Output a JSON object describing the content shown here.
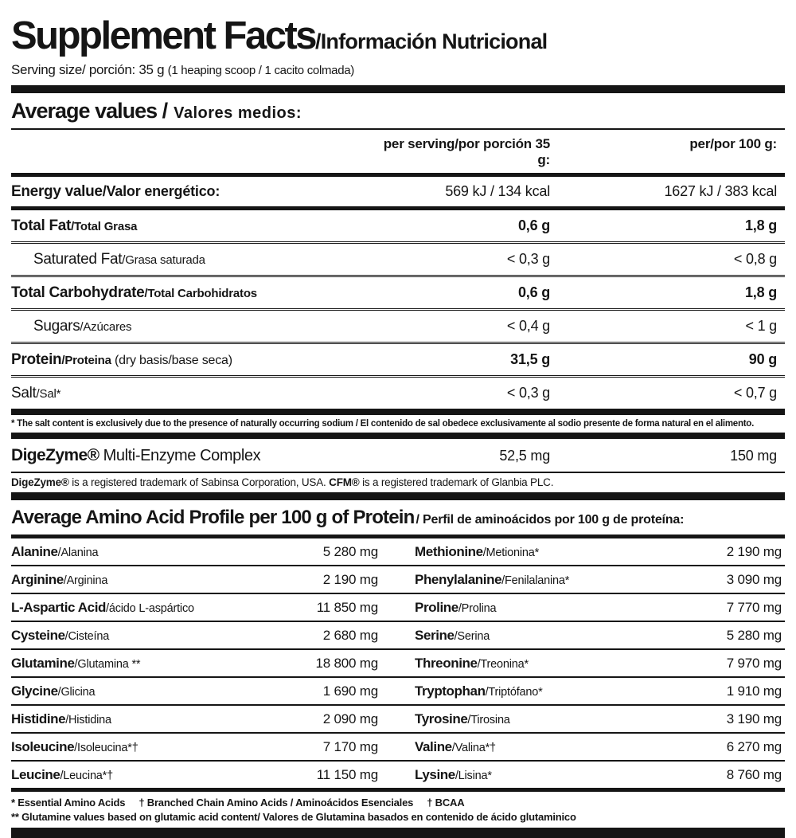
{
  "header": {
    "title_en": "Supplement Facts",
    "title_es": "/Información Nutricional",
    "serving_label": "Serving size/ porción: 35 g ",
    "serving_note": "(1 heaping scoop / 1 cacito colmada)"
  },
  "average_values": {
    "heading_en": "Average values /",
    "heading_es": "Valores medios:",
    "col_per_serving": "per serving/por porción 35 g:",
    "col_per_100g": "per/por 100 g:"
  },
  "nutrition": {
    "rows": [
      {
        "en": "Energy value",
        "es": "/Valor energético:",
        "serving": "569 kJ / 134 kcal",
        "per100": "1627 kJ / 383 kcal"
      },
      {
        "en": "Total Fat",
        "es": "/Total Grasa",
        "serving": "0,6 g",
        "per100": "1,8 g"
      },
      {
        "en": "Saturated Fat",
        "es": "/Grasa saturada",
        "serving": "< 0,3 g",
        "per100": "< 0,8 g"
      },
      {
        "en": "Total Carbohydrate",
        "es": "/Total Carbohidratos",
        "serving": "0,6 g",
        "per100": "1,8 g"
      },
      {
        "en": "Sugars",
        "es": "/Azúcares",
        "serving": "< 0,4 g",
        "per100": "< 1 g"
      },
      {
        "en": "Protein",
        "es": "/Proteina",
        "note": " (dry basis/base seca)",
        "serving": "31,5 g",
        "per100": "90 g"
      },
      {
        "en": "Salt",
        "es": "/Sal*",
        "serving": "< 0,3 g",
        "per100": "< 0,7 g"
      }
    ],
    "salt_footnote": "* The salt content is exclusively due to the presence of naturally occurring sodium / El contenido de sal obedece exclusivamente al sodio presente de forma natural en el alimento."
  },
  "enzyme": {
    "name_bold": "DigeZyme®",
    "name_rest": " Multi-Enzyme Complex",
    "serving": "52,5 mg",
    "per100": "150 mg",
    "tm_bold1": "DigeZyme®",
    "tm_text1": " is a registered trademark of Sabinsa Corporation, USA. ",
    "tm_bold2": "CFM®",
    "tm_text2": " is a registered trademark of Glanbia PLC."
  },
  "amino": {
    "heading_en": "Average Amino Acid Profile per 100 g of Protein",
    "heading_es": "/ Perfil de aminoácidos por 100 g de proteína:",
    "rows": [
      {
        "l_en": "Alanine",
        "l_es": "/Alanina",
        "l_val": "5 280 mg",
        "r_en": "Methionine",
        "r_es": "/Metionina*",
        "r_val": "2 190 mg"
      },
      {
        "l_en": "Arginine",
        "l_es": "/Arginina",
        "l_val": "2 190 mg",
        "r_en": "Phenylalanine",
        "r_es": "/Fenilalanina*",
        "r_val": "3 090 mg"
      },
      {
        "l_en": "L-Aspartic Acid",
        "l_es": "/ácido L-aspártico",
        "l_val": "11 850 mg",
        "r_en": "Proline",
        "r_es": "/Prolina",
        "r_val": "7 770 mg"
      },
      {
        "l_en": "Cysteine",
        "l_es": "/Cisteína",
        "l_val": "2 680 mg",
        "r_en": "Serine",
        "r_es": "/Serina",
        "r_val": "5 280 mg"
      },
      {
        "l_en": "Glutamine",
        "l_es": "/Glutamina **",
        "l_val": "18 800 mg",
        "r_en": "Threonine",
        "r_es": "/Treonina*",
        "r_val": "7 970 mg"
      },
      {
        "l_en": "Glycine",
        "l_es": "/Glicina",
        "l_val": "1 690 mg",
        "r_en": "Tryptophan",
        "r_es": "/Triptófano*",
        "r_val": "1 910 mg"
      },
      {
        "l_en": "Histidine",
        "l_es": "/Histidina",
        "l_val": "2 090 mg",
        "r_en": "Tyrosine",
        "r_es": "/Tirosina",
        "r_val": "3 190 mg"
      },
      {
        "l_en": "Isoleucine",
        "l_es": "/Isoleucina*†",
        "l_val": "7 170 mg",
        "r_en": "Valine",
        "r_es": "/Valina*†",
        "r_val": "6 270 mg"
      },
      {
        "l_en": "Leucine",
        "l_es": "/Leucina*†",
        "l_val": "11 150 mg",
        "r_en": "Lysine",
        "r_es": "/Lisina*",
        "r_val": "8 760 mg"
      }
    ],
    "footnote1": "* Essential Amino Acids     † Branched Chain Amino Acids / Aminoácidos Esenciales     † BCAA",
    "footnote2": "** Glutamine values based on glutamic acid content/ Valores de Glutamina basados en contenido de ácido glutaminico"
  }
}
